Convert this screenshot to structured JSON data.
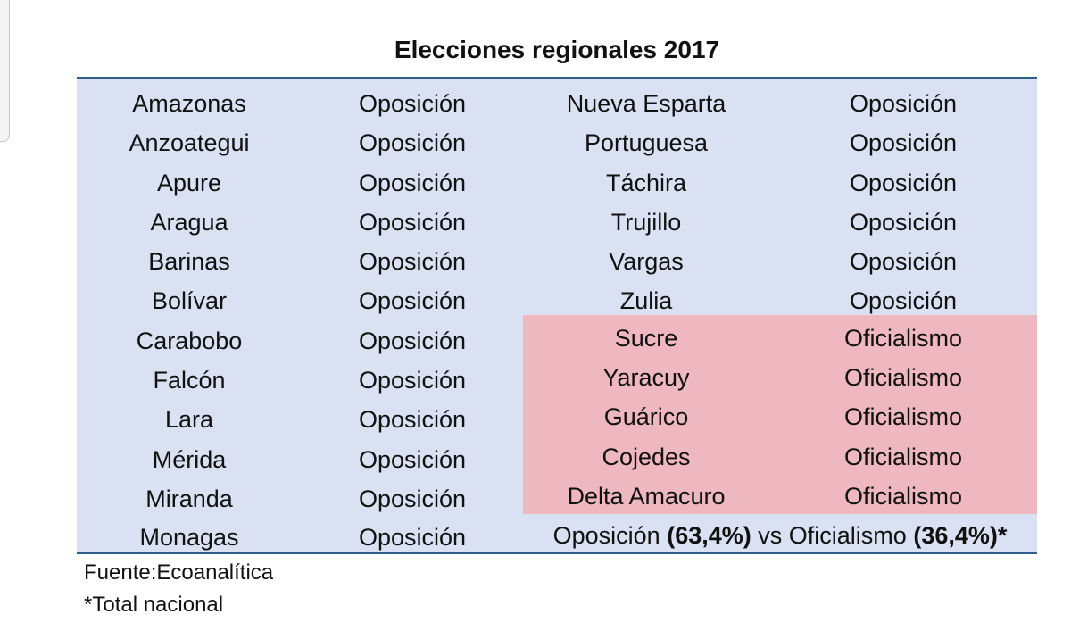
{
  "title": "Elecciones regionales 2017",
  "colors": {
    "table_bg": "#d9e1f2",
    "oficialismo_bg": "#efb8c0",
    "rule": "#2e5f8a"
  },
  "left_column": [
    {
      "state": "Amazonas",
      "result": "Oposición"
    },
    {
      "state": "Anzoategui",
      "result": "Oposición"
    },
    {
      "state": "Apure",
      "result": "Oposición"
    },
    {
      "state": "Aragua",
      "result": "Oposición"
    },
    {
      "state": "Barinas",
      "result": "Oposición"
    },
    {
      "state": "Bolívar",
      "result": "Oposición"
    },
    {
      "state": "Carabobo",
      "result": "Oposición"
    },
    {
      "state": "Falcón",
      "result": "Oposición"
    },
    {
      "state": "Lara",
      "result": "Oposición"
    },
    {
      "state": "Mérida",
      "result": "Oposición"
    },
    {
      "state": "Miranda",
      "result": "Oposición"
    },
    {
      "state": "Monagas",
      "result": "Oposición"
    }
  ],
  "right_column": [
    {
      "state": "Nueva Esparta",
      "result": "Oposición"
    },
    {
      "state": "Portuguesa",
      "result": "Oposición"
    },
    {
      "state": "Táchira",
      "result": "Oposición"
    },
    {
      "state": "Trujillo",
      "result": "Oposición"
    },
    {
      "state": "Vargas",
      "result": "Oposición"
    },
    {
      "state": "Zulia",
      "result": "Oposición"
    },
    {
      "state": "Sucre",
      "result": "Oficialismo"
    },
    {
      "state": "Yaracuy",
      "result": "Oficialismo"
    },
    {
      "state": "Guárico",
      "result": "Oficialismo"
    },
    {
      "state": "Cojedes",
      "result": "Oficialismo"
    },
    {
      "state": "Delta Amacuro",
      "result": "Oficialismo"
    }
  ],
  "summary": {
    "label_a": "Oposición",
    "value_a": "(63,4%)",
    "vs": "vs",
    "label_b": "Oficialismo",
    "value_b": "(36,4%)*"
  },
  "source": "Fuente:Ecoanalítica",
  "footnote": "*Total nacional"
}
